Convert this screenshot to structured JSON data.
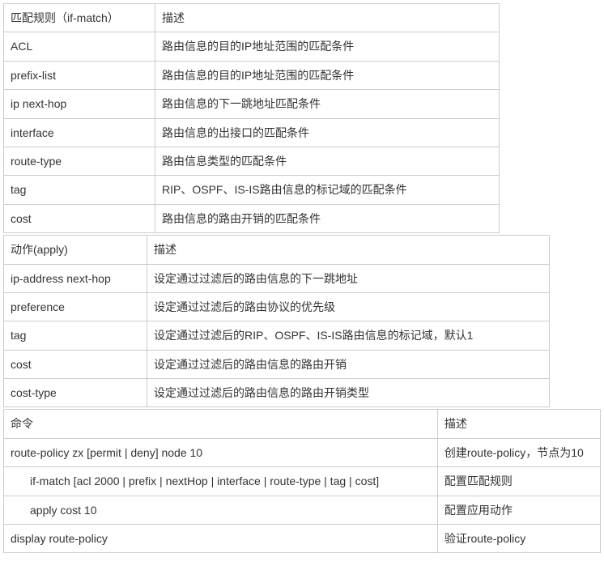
{
  "tables": {
    "match_rules": {
      "header": {
        "c1": "匹配规则（if-match）",
        "c2": "描述"
      },
      "rows": [
        {
          "c1": "ACL",
          "c2": "路由信息的目的IP地址范围的匹配条件"
        },
        {
          "c1": "prefix-list",
          "c2": "路由信息的目的IP地址范围的匹配条件"
        },
        {
          "c1": "ip next-hop",
          "c2": "路由信息的下一跳地址匹配条件"
        },
        {
          "c1": "interface",
          "c2": "路由信息的出接口的匹配条件"
        },
        {
          "c1": "route-type",
          "c2": "路由信息类型的匹配条件"
        },
        {
          "c1": "tag",
          "c2": "RIP、OSPF、IS-IS路由信息的标记域的匹配条件"
        },
        {
          "c1": "cost",
          "c2": "路由信息的路由开销的匹配条件"
        }
      ]
    },
    "apply_actions": {
      "header": {
        "c1": "动作(apply)",
        "c2": "描述"
      },
      "rows": [
        {
          "c1": "ip-address next-hop",
          "c2": "设定通过过滤后的路由信息的下一跳地址"
        },
        {
          "c1": "preference",
          "c2": "设定通过过滤后的路由协议的优先级"
        },
        {
          "c1": "tag",
          "c2": "设定通过过滤后的RIP、OSPF、IS-IS路由信息的标记域，默认1"
        },
        {
          "c1": "cost",
          "c2": "设定通过过滤后的路由信息的路由开销"
        },
        {
          "c1": "cost-type",
          "c2": "设定通过过滤后的路由信息的路由开销类型"
        }
      ]
    },
    "commands": {
      "header": {
        "c1": "命令",
        "c2": "描述"
      },
      "rows": [
        {
          "c1": "route-policy zx [permit | deny] node 10",
          "c2": "创建route-policy，节点为10",
          "indent": false
        },
        {
          "c1": "if-match [acl 2000 | prefix | nextHop | interface | route-type | tag | cost]",
          "c2": "配置匹配规则",
          "indent": true
        },
        {
          "c1": "apply cost 10",
          "c2": "配置应用动作",
          "indent": true
        },
        {
          "c1": "display route-policy",
          "c2": "验证route-policy",
          "indent": false
        }
      ]
    }
  }
}
